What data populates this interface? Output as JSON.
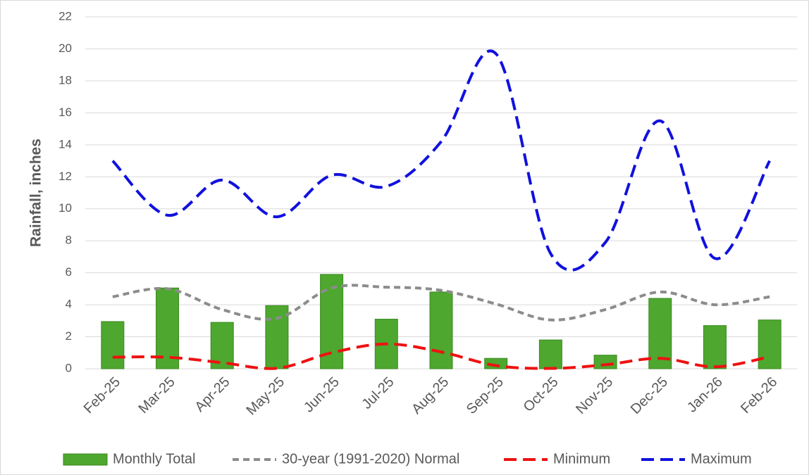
{
  "chart_data": {
    "type": "combo",
    "y_label": "Rainfall, inches",
    "categories": [
      "Feb-25",
      "Mar-25",
      "Apr-25",
      "May-25",
      "Jun-25",
      "Jul-25",
      "Aug-25",
      "Sep-25",
      "Oct-25",
      "Nov-25",
      "Dec-25",
      "Jan-26",
      "Feb-26"
    ],
    "series": [
      {
        "name": "Monthly Total",
        "type": "bar",
        "color": "#4ea72e",
        "values": [
          2.95,
          5.05,
          2.9,
          3.95,
          5.9,
          3.1,
          4.8,
          0.65,
          1.8,
          0.85,
          4.4,
          2.7,
          3.05
        ]
      },
      {
        "name": "30-year (1991-2020) Normal",
        "type": "line",
        "color": "#8c8c8c",
        "dash": "short",
        "values": [
          4.5,
          5.0,
          3.7,
          3.15,
          5.05,
          5.1,
          4.9,
          4.05,
          3.05,
          3.7,
          4.8,
          4.0,
          4.5
        ]
      },
      {
        "name": "Minimum",
        "type": "line",
        "color": "#ee1111",
        "dash": "long",
        "values": [
          0.72,
          0.72,
          0.38,
          0.03,
          1.0,
          1.55,
          1.05,
          0.2,
          0.02,
          0.25,
          0.65,
          0.12,
          0.75
        ]
      },
      {
        "name": "Maximum",
        "type": "line",
        "color": "#1111dd",
        "dash": "long",
        "values": [
          13.0,
          9.6,
          11.8,
          9.5,
          12.1,
          11.4,
          14.2,
          19.7,
          7.2,
          7.9,
          15.5,
          6.9,
          13.0
        ]
      }
    ],
    "ylim": [
      0,
      22
    ],
    "yticks": [
      0,
      2,
      4,
      6,
      8,
      10,
      12,
      14,
      16,
      18,
      20,
      22
    ],
    "grid": true,
    "smooth": true,
    "legend": "bottom"
  }
}
